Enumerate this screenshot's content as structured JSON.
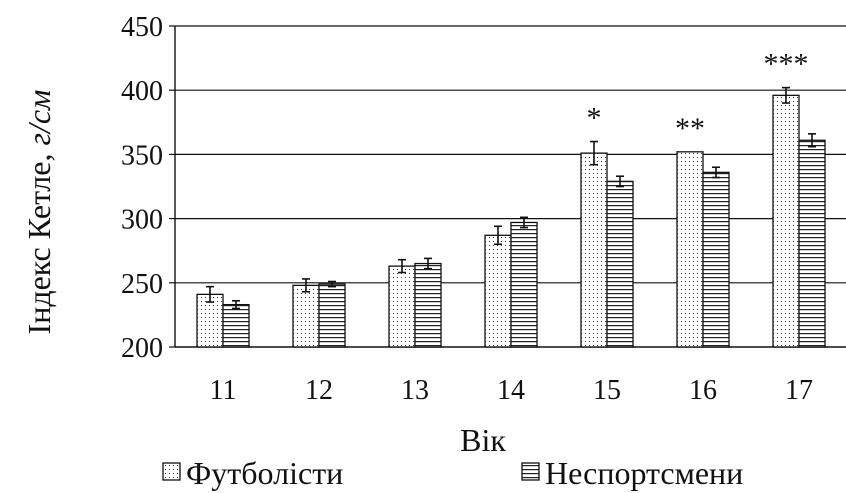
{
  "chart_data": {
    "type": "bar",
    "title": "",
    "xlabel": "Вік",
    "ylabel_main": "Індекс Кетле,",
    "ylabel_unit": "г/см",
    "ylim": [
      200,
      450
    ],
    "yticks": [
      200,
      250,
      300,
      350,
      400,
      450
    ],
    "grid": true,
    "legend_position": "bottom",
    "categories": [
      "11",
      "12",
      "13",
      "14",
      "15",
      "16",
      "17"
    ],
    "series": [
      {
        "name": "Футболісти",
        "pattern": "dots",
        "values": [
          241,
          248,
          263,
          287,
          351,
          352,
          396
        ],
        "errors": [
          6,
          5,
          5,
          7,
          9,
          0,
          6
        ]
      },
      {
        "name": "Неспортсмени",
        "pattern": "horizontal-lines",
        "values": [
          233,
          249,
          265,
          297,
          329,
          336,
          361
        ],
        "errors": [
          3,
          2,
          4,
          4,
          4,
          4,
          5
        ]
      }
    ],
    "significance": [
      "",
      "",
      "",
      "",
      "*",
      "**",
      "***"
    ],
    "colors": {
      "axis": "#111111",
      "grid": "#111111",
      "bar_fill": "#ffffff"
    }
  }
}
